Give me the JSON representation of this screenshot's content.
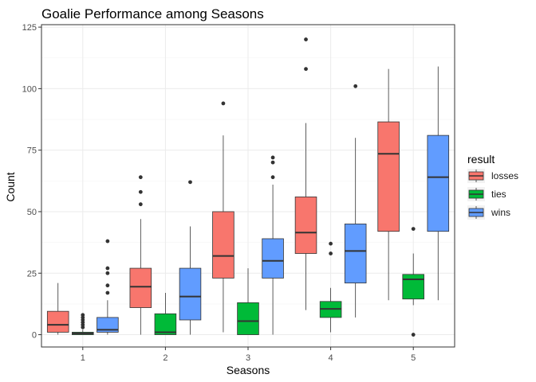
{
  "chart_data": {
    "type": "boxplot",
    "title": "Goalie Performance among Seasons",
    "xlabel": "Seasons",
    "ylabel": "Count",
    "categories": [
      "1",
      "2",
      "3",
      "4",
      "5"
    ],
    "ylim": [
      -5,
      126
    ],
    "yticks": [
      0,
      25,
      50,
      75,
      100,
      125
    ],
    "grid": true,
    "legend": {
      "title": "result",
      "position": "right",
      "entries": [
        "losses",
        "ties",
        "wins"
      ]
    },
    "series": [
      {
        "name": "losses",
        "color": "#F8766D",
        "boxes": [
          {
            "min": 0,
            "q1": 1,
            "median": 4,
            "q3": 9.5,
            "max": 21,
            "outliers": []
          },
          {
            "min": 0,
            "q1": 11,
            "median": 19.5,
            "q3": 27,
            "max": 47,
            "outliers": [
              53,
              58,
              64
            ]
          },
          {
            "min": 1,
            "q1": 23,
            "median": 32,
            "q3": 50,
            "max": 81,
            "outliers": [
              94
            ]
          },
          {
            "min": 10,
            "q1": 33,
            "median": 41.5,
            "q3": 56,
            "max": 86,
            "outliers": [
              108,
              120
            ]
          },
          {
            "min": 14,
            "q1": 42,
            "median": 73.5,
            "q3": 86.5,
            "max": 108,
            "outliers": []
          }
        ]
      },
      {
        "name": "ties",
        "color": "#00BA38",
        "boxes": [
          {
            "min": 0,
            "q1": 0,
            "median": 0.5,
            "q3": 1,
            "max": 2,
            "outliers": [
              3,
              4,
              5,
              6,
              7,
              8
            ]
          },
          {
            "min": 0,
            "q1": 0,
            "median": 1,
            "q3": 8.5,
            "max": 17,
            "outliers": []
          },
          {
            "min": 0,
            "q1": 0,
            "median": 5.5,
            "q3": 13,
            "max": 27,
            "outliers": []
          },
          {
            "min": 1,
            "q1": 7,
            "median": 10.5,
            "q3": 13.5,
            "max": 19,
            "outliers": [
              33,
              37
            ]
          },
          {
            "min": 12,
            "q1": 14.5,
            "median": 22.5,
            "q3": 24.5,
            "max": 33,
            "outliers": [
              0,
              43
            ]
          }
        ]
      },
      {
        "name": "wins",
        "color": "#619CFF",
        "boxes": [
          {
            "min": 0,
            "q1": 1,
            "median": 2,
            "q3": 7,
            "max": 14,
            "outliers": [
              17,
              20,
              25,
              27,
              38
            ]
          },
          {
            "min": 0,
            "q1": 6,
            "median": 15.5,
            "q3": 27,
            "max": 44,
            "outliers": [
              62
            ]
          },
          {
            "min": 0,
            "q1": 23,
            "median": 30,
            "q3": 39,
            "max": 61,
            "outliers": [
              64,
              70,
              72
            ]
          },
          {
            "min": 7,
            "q1": 21,
            "median": 34,
            "q3": 45,
            "max": 80,
            "outliers": [
              101
            ]
          },
          {
            "min": 14,
            "q1": 42,
            "median": 64,
            "q3": 81,
            "max": 109,
            "outliers": []
          }
        ]
      }
    ]
  },
  "style": {
    "panel_border": "#333333",
    "grid_major": "#ebebeb",
    "grid_minor": "#f5f5f5",
    "whisker": "#333333",
    "median": "#333333",
    "outlier": "#333333"
  }
}
